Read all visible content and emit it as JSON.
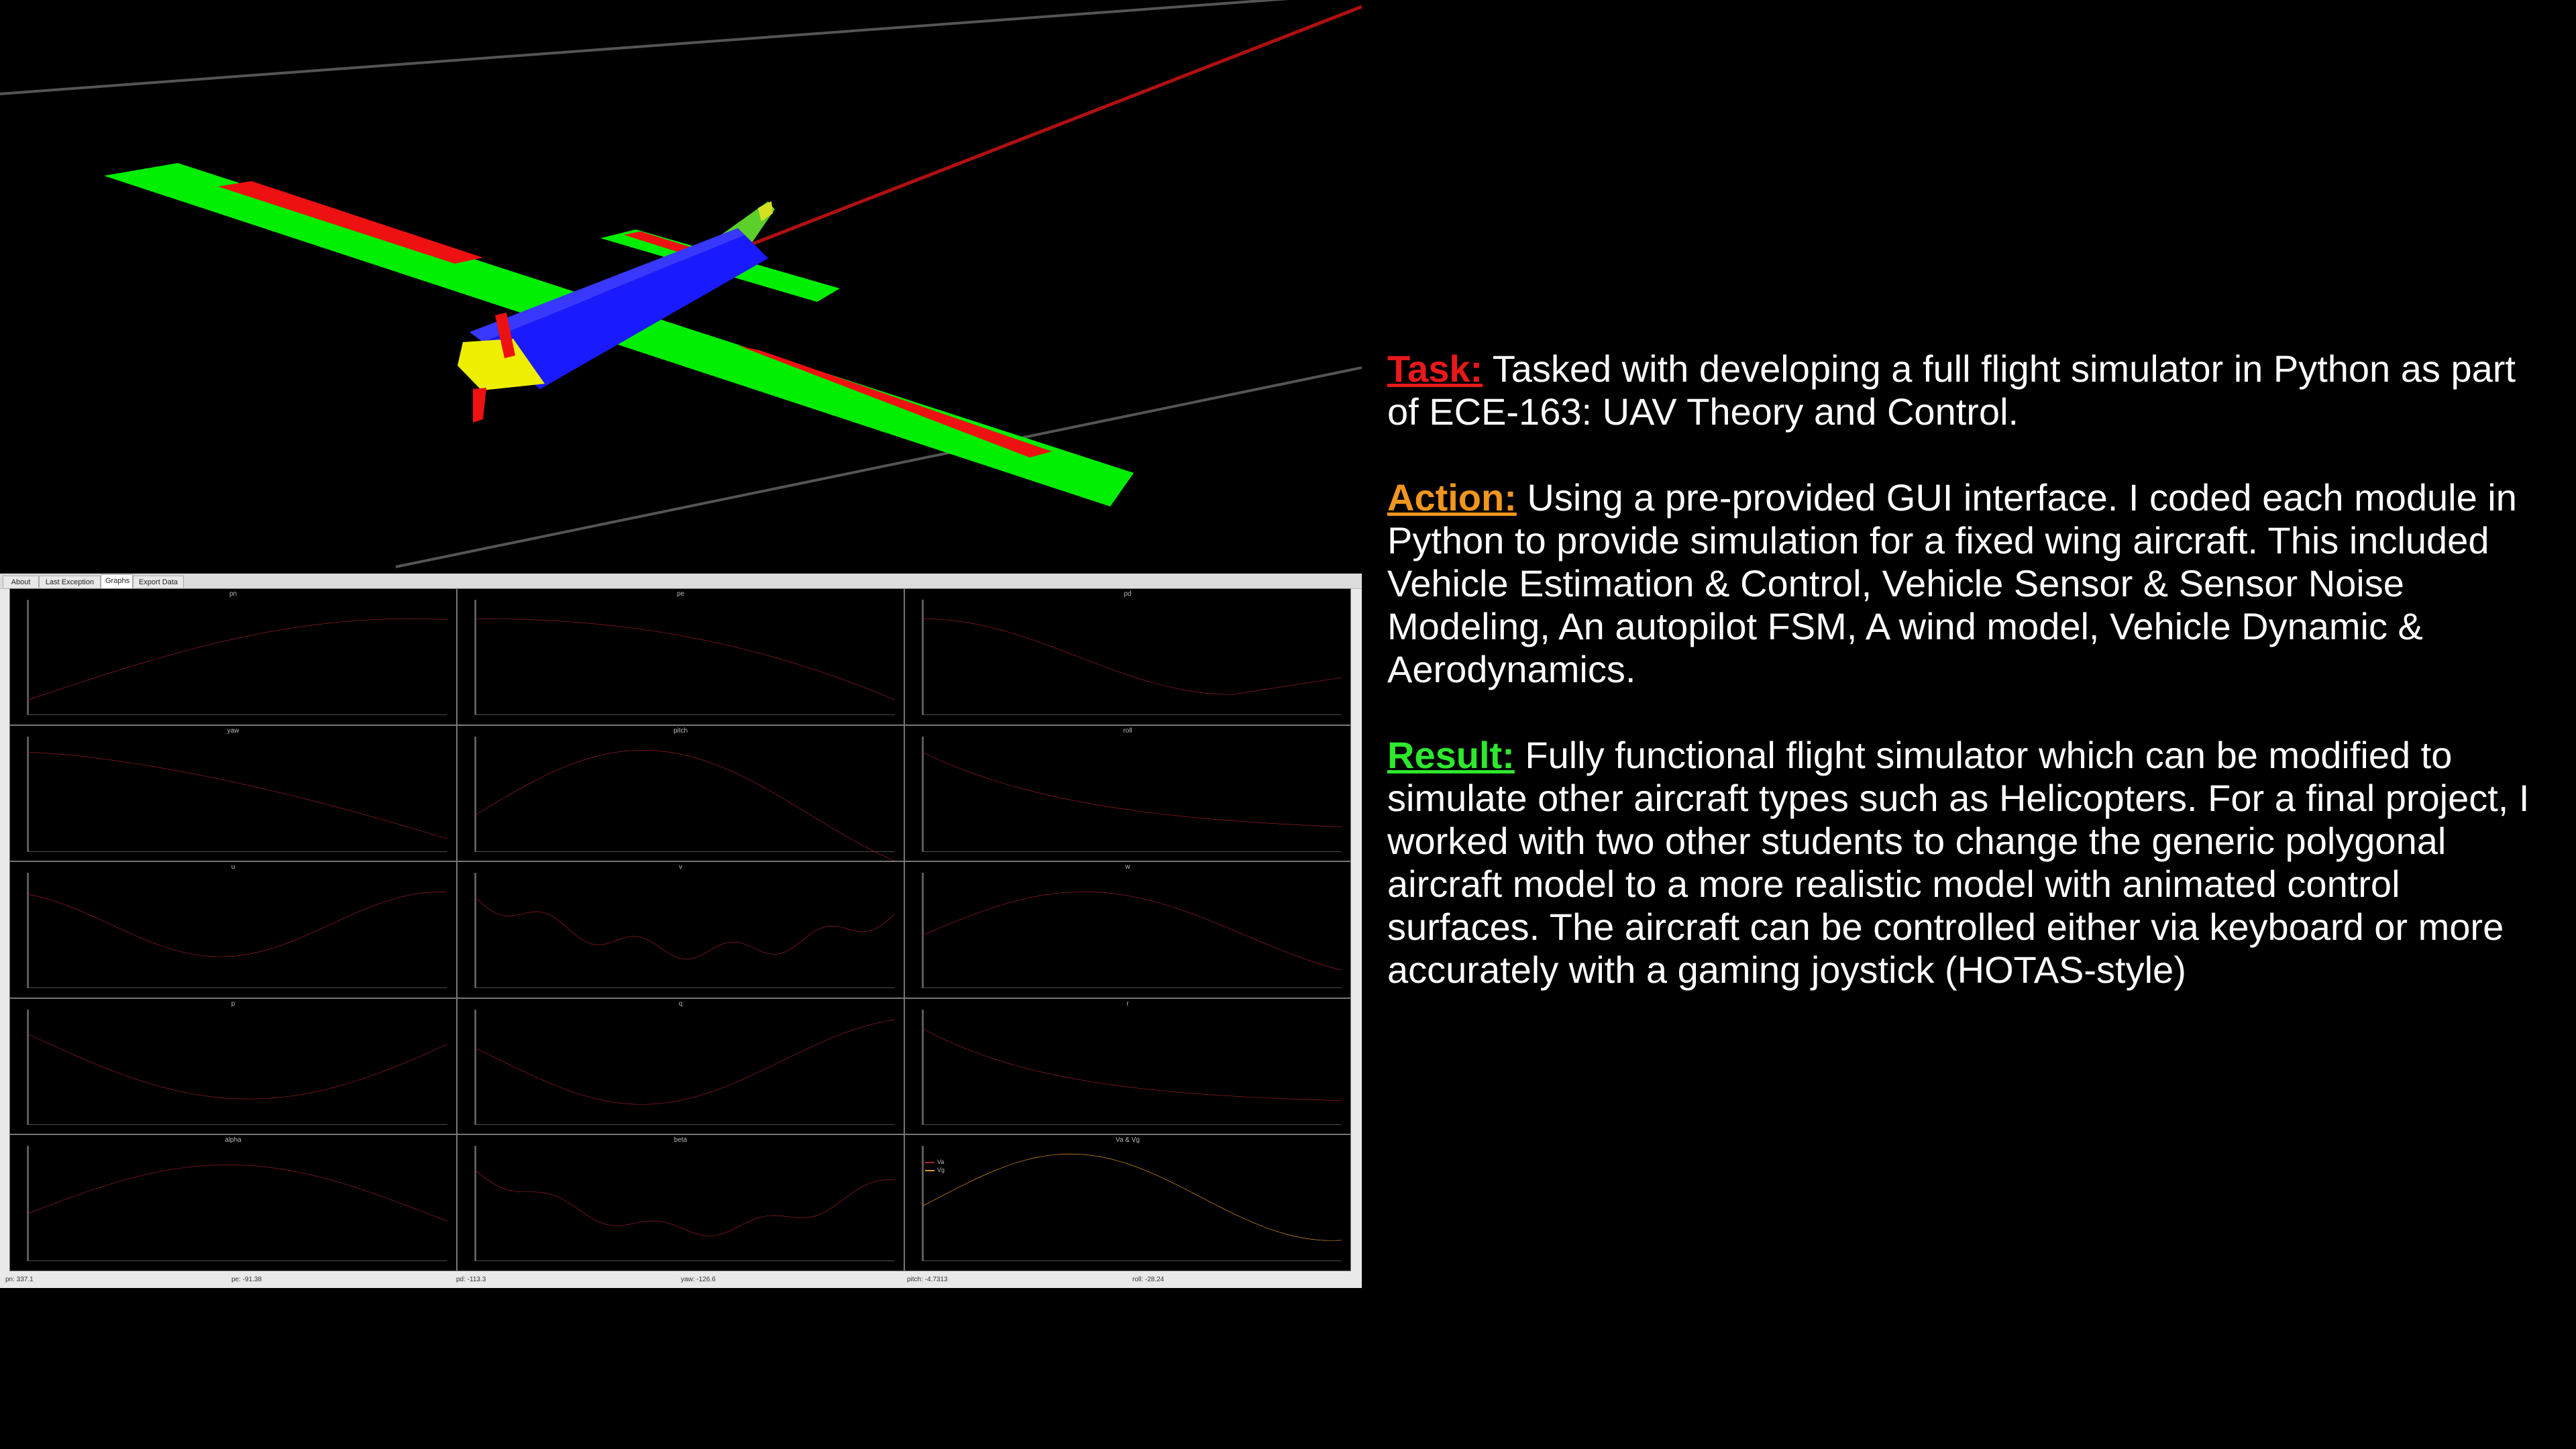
{
  "gui": {
    "tabs": [
      "About",
      "Last Exception",
      "Graphs",
      "Export Data"
    ],
    "active_tab": "Graphs",
    "plot_titles": [
      "pn",
      "pe",
      "pd",
      "yaw",
      "pitch",
      "roll",
      "u",
      "v",
      "w",
      "p",
      "q",
      "r",
      "alpha",
      "beta",
      "Va & Vg"
    ],
    "legend_labels": [
      "Va",
      "Vg"
    ],
    "status": [
      "pn: 337.1",
      "pe: -91.38",
      "pd: -113.3",
      "yaw: -126.6",
      "pitch: -4.7313",
      "roll: -28.24"
    ]
  },
  "description": {
    "task_label": "Task:",
    "task_text": " Tasked with developing a full flight simulator in Python as part of ECE-163: UAV Theory and Control.",
    "action_label": "Action:",
    "action_text": " Using a pre-provided GUI interface. I coded each module in Python to provide simulation for a fixed wing aircraft. This included Vehicle Estimation & Control, Vehicle Sensor & Sensor Noise Modeling, An autopilot FSM, A wind model, Vehicle Dynamic & Aerodynamics.",
    "result_label": "Result:",
    "result_text": " Fully functional flight simulator which can be modified to simulate other aircraft types such as Helicopters. For a final project, I worked with two other students to change the generic polygonal aircraft model to a more realistic model with animated control surfaces. The aircraft can be controlled either via keyboard or more accurately with a gaming joystick (HOTAS-style)"
  },
  "colors": {
    "task": "#e8191a",
    "action": "#f0961e",
    "result": "#2ee82e",
    "plot_line": "#b0202a",
    "plot_line_vg": "#d4a020",
    "wing": "#00ee00",
    "aileron": "#ee1111",
    "fuselage": "#1a1aff",
    "nose": "#eeee00"
  }
}
